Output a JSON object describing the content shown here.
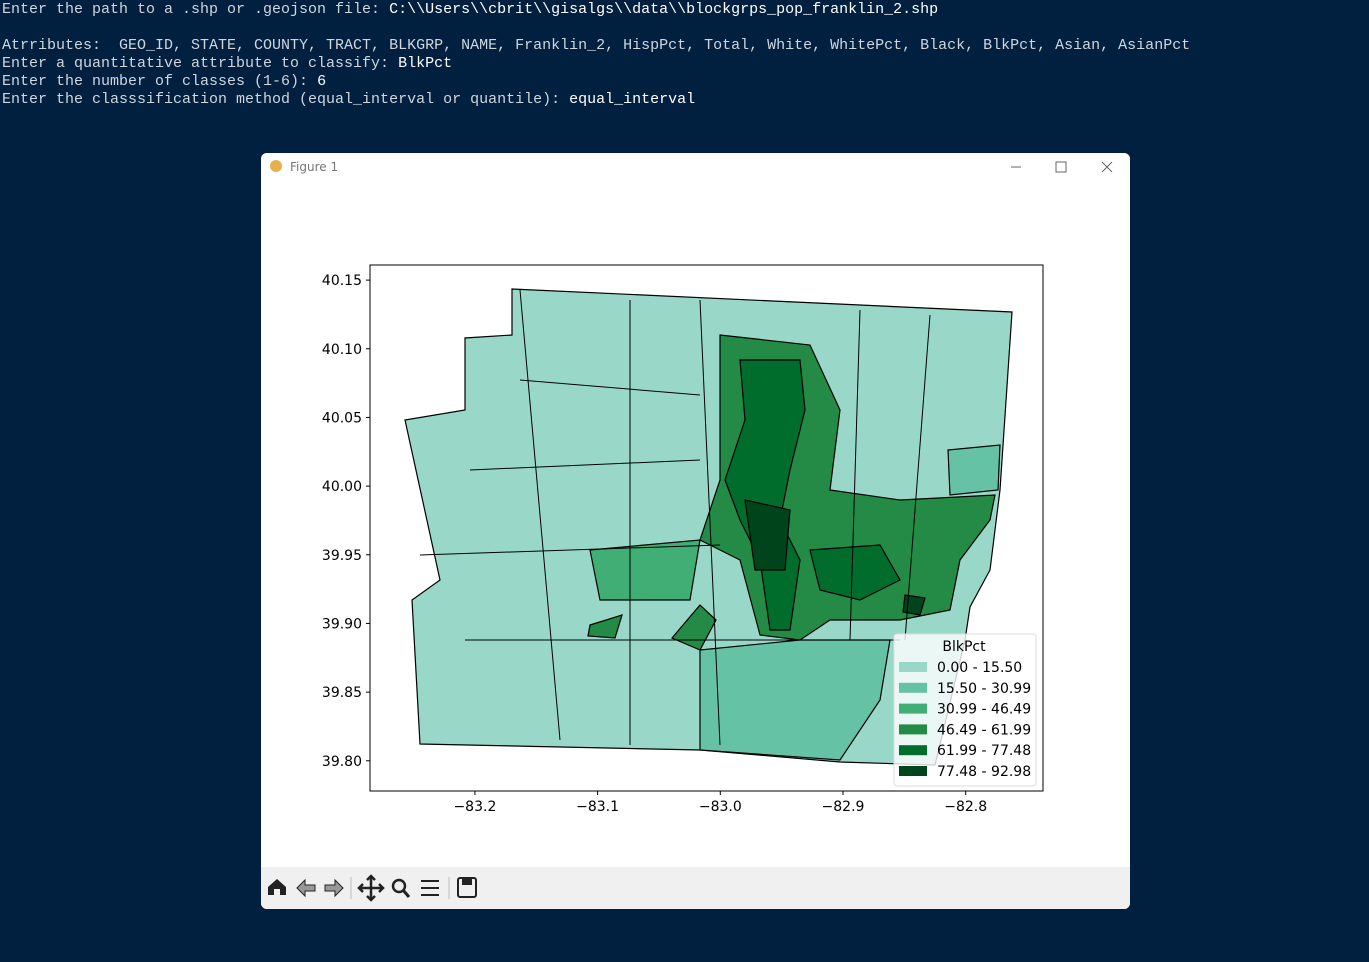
{
  "terminal": {
    "lines": [
      {
        "prompt": "Enter the path to a .shp or .geojson file: ",
        "input": "C:\\\\Users\\\\cbrit\\\\gisalgs\\\\data\\\\blockgrps_pop_franklin_2.shp"
      },
      {
        "prompt": "Atrributes:  GEO_ID, STATE, COUNTY, TRACT, BLKGRP, NAME, Franklin_2, HispPct, Total, White, WhitePct, Black, BlkPct, Asian, AsianPct"
      },
      {
        "prompt": "Enter a quantitative attribute to classify: ",
        "input": "BlkPct"
      },
      {
        "prompt": "Enter the number of classes (1-6): ",
        "input": "6"
      },
      {
        "prompt": "Enter the classsification method (equal_interval or quantile): ",
        "input": "equal_interval"
      }
    ]
  },
  "window": {
    "title": "Figure 1",
    "plot": {
      "xlim": [
        -83.2855,
        -82.737
      ],
      "ylim": [
        39.778,
        40.161
      ],
      "xticks": [
        {
          "value": -83.2,
          "label": "−83.2"
        },
        {
          "value": -83.1,
          "label": "−83.1"
        },
        {
          "value": -83.0,
          "label": "−83.0"
        },
        {
          "value": -82.9,
          "label": "−82.9"
        },
        {
          "value": -82.8,
          "label": "−82.8"
        }
      ],
      "yticks": [
        40.15,
        {
          "value": 40.1,
          "label": "40.10"
        },
        40.05,
        {
          "value": 40.0,
          "label": "40.00"
        },
        39.95,
        {
          "value": 39.9,
          "label": "39.90"
        },
        39.85,
        {
          "value": 39.8,
          "label": "39.80"
        }
      ],
      "legend": {
        "title": "BlkPct",
        "entries": [
          {
            "label": "0.00 - 15.50",
            "color": "#99d8c9"
          },
          {
            "label": "15.50 - 30.99",
            "color": "#66c2a4"
          },
          {
            "label": "30.99 - 46.49",
            "color": "#41ae76"
          },
          {
            "label": "46.49 - 61.99",
            "color": "#238b45"
          },
          {
            "label": "61.99 - 77.48",
            "color": "#006d2c"
          },
          {
            "label": "77.48 - 92.98",
            "color": "#00441b"
          }
        ]
      }
    }
  }
}
